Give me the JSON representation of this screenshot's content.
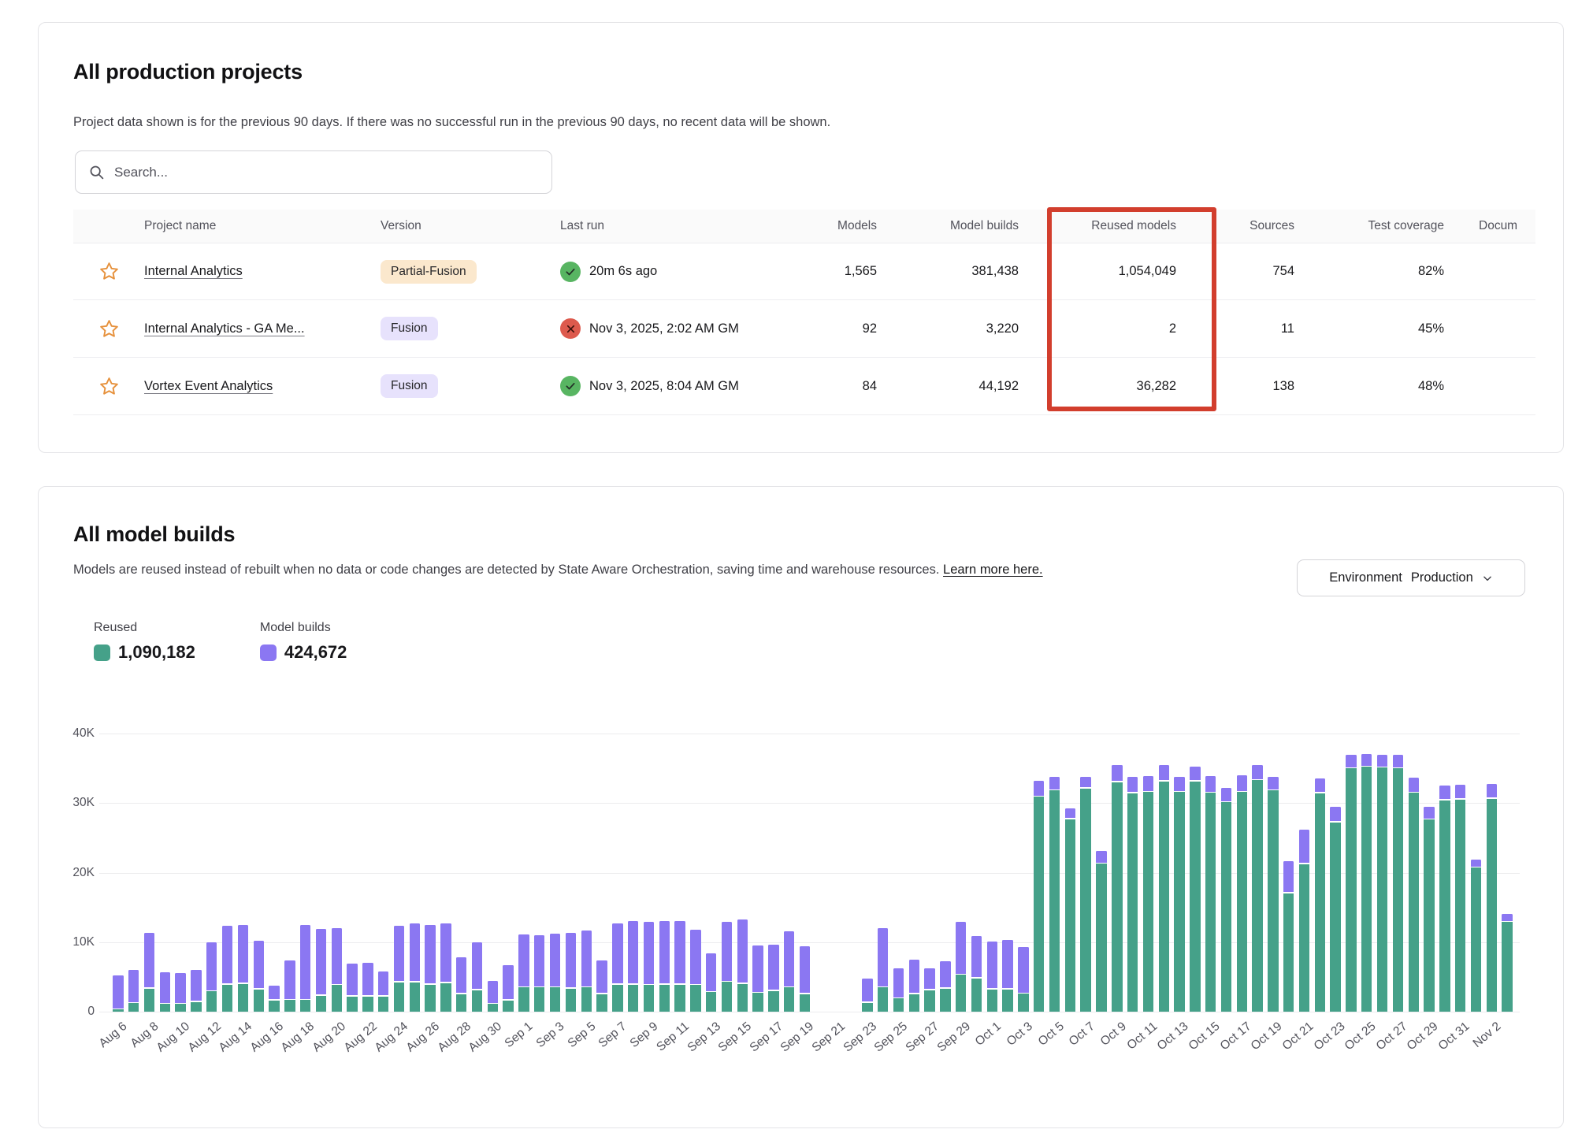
{
  "projects_card": {
    "title": "All production projects",
    "subtitle": "Project data shown is for the previous 90 days. If there was no successful run in the previous 90 days, no recent data will be shown.",
    "search_placeholder": "Search...",
    "table": {
      "columns": [
        "Project name",
        "Version",
        "Last run",
        "Models",
        "Model builds",
        "Reused models",
        "Sources",
        "Test coverage",
        "Docum"
      ],
      "rows": [
        {
          "name": "Internal Analytics",
          "version": "Partial-Fusion",
          "version_style": "partial",
          "status": "success",
          "last_run": "20m 6s ago",
          "models": "1,565",
          "model_builds": "381,438",
          "reused_models": "1,054,049",
          "sources": "754",
          "test_coverage": "82%"
        },
        {
          "name": "Internal Analytics - GA Me...",
          "version": "Fusion",
          "version_style": "fusion",
          "status": "error",
          "last_run": "Nov 3, 2025, 2:02 AM GM",
          "models": "92",
          "model_builds": "3,220",
          "reused_models": "2",
          "sources": "11",
          "test_coverage": "45%"
        },
        {
          "name": "Vortex Event Analytics",
          "version": "Fusion",
          "version_style": "fusion",
          "status": "success",
          "last_run": "Nov 3, 2025, 8:04 AM GM",
          "models": "84",
          "model_builds": "44,192",
          "reused_models": "36,282",
          "sources": "138",
          "test_coverage": "48%"
        }
      ]
    },
    "annotation": {
      "label": "red highlight around Reused models column",
      "color": "#d23e2d"
    }
  },
  "builds_card": {
    "title": "All model builds",
    "subtitle": "Models are reused instead of rebuilt when no data or code changes are detected by State Aware Orchestration, saving time and warehouse resources.",
    "learn_more": "Learn more here.",
    "env_label": "Environment",
    "env_value": "Production",
    "legend": [
      {
        "label": "Reused",
        "value": "1,090,182",
        "color": "#45a189"
      },
      {
        "label": "Model builds",
        "value": "424,672",
        "color": "#8b77f2"
      }
    ]
  },
  "chart_data": {
    "type": "bar",
    "stacked": true,
    "title": "All model builds",
    "xlabel": "",
    "ylabel": "",
    "ylim": [
      0,
      40000
    ],
    "y_ticks": [
      "0",
      "10K",
      "20K",
      "30K",
      "40K"
    ],
    "x_tick_every": 2,
    "grid": true,
    "legend_position": "top-left",
    "categories": [
      "Aug 6",
      "Aug 7",
      "Aug 8",
      "Aug 9",
      "Aug 10",
      "Aug 11",
      "Aug 12",
      "Aug 13",
      "Aug 14",
      "Aug 15",
      "Aug 16",
      "Aug 17",
      "Aug 18",
      "Aug 19",
      "Aug 20",
      "Aug 21",
      "Aug 22",
      "Aug 23",
      "Aug 24",
      "Aug 25",
      "Aug 26",
      "Aug 27",
      "Aug 28",
      "Aug 29",
      "Aug 30",
      "Aug 31",
      "Sep 1",
      "Sep 2",
      "Sep 3",
      "Sep 4",
      "Sep 5",
      "Sep 6",
      "Sep 7",
      "Sep 8",
      "Sep 9",
      "Sep 10",
      "Sep 11",
      "Sep 12",
      "Sep 13",
      "Sep 14",
      "Sep 15",
      "Sep 16",
      "Sep 17",
      "Sep 18",
      "Sep 19",
      "Sep 20",
      "Sep 21",
      "Sep 22",
      "Sep 23",
      "Sep 24",
      "Sep 25",
      "Sep 26",
      "Sep 27",
      "Sep 28",
      "Sep 29",
      "Sep 30",
      "Oct 1",
      "Oct 2",
      "Oct 3",
      "Oct 4",
      "Oct 5",
      "Oct 6",
      "Oct 7",
      "Oct 8",
      "Oct 9",
      "Oct 10",
      "Oct 11",
      "Oct 12",
      "Oct 13",
      "Oct 14",
      "Oct 15",
      "Oct 16",
      "Oct 17",
      "Oct 18",
      "Oct 19",
      "Oct 20",
      "Oct 21",
      "Oct 22",
      "Oct 23",
      "Oct 24",
      "Oct 25",
      "Oct 26",
      "Oct 27",
      "Oct 28",
      "Oct 29",
      "Oct 30",
      "Oct 31",
      "Nov 1",
      "Nov 2",
      "Nov 3"
    ],
    "series": [
      {
        "name": "Reused",
        "color": "#45a189",
        "values": [
          300,
          1200,
          3300,
          1100,
          1100,
          1400,
          2900,
          3900,
          4000,
          3200,
          1600,
          1700,
          1700,
          2300,
          3800,
          2200,
          2200,
          2200,
          4200,
          4200,
          3900,
          4100,
          2500,
          3100,
          1100,
          1600,
          3500,
          3500,
          3500,
          3300,
          3500,
          2500,
          3900,
          3900,
          3800,
          3900,
          3900,
          3800,
          2800,
          4300,
          4000,
          2700,
          3000,
          3500,
          2500,
          0,
          0,
          0,
          1300,
          3500,
          1900,
          2500,
          3100,
          3300,
          5300,
          4800,
          3200,
          3200,
          2600,
          30900,
          31800,
          27700,
          32100,
          21300,
          33000,
          31400,
          31600,
          33100,
          31600,
          33100,
          31500,
          30100,
          31600,
          33300,
          31800,
          17000,
          21200,
          31400,
          27200,
          35000,
          35200,
          35100,
          35000,
          31500,
          27600,
          30400,
          30500,
          20700,
          30600,
          12900
        ]
      },
      {
        "name": "Model builds",
        "color": "#8b77f2",
        "values": [
          4700,
          4600,
          7900,
          4400,
          4300,
          4400,
          6900,
          8300,
          8300,
          6800,
          2000,
          5500,
          10600,
          9400,
          8100,
          4600,
          4700,
          3400,
          8000,
          8300,
          8400,
          8400,
          5200,
          6700,
          3100,
          4900,
          7400,
          7300,
          7500,
          7900,
          8000,
          4700,
          8600,
          9000,
          9000,
          9000,
          9000,
          7800,
          5400,
          8500,
          9100,
          6600,
          6500,
          7900,
          6700,
          0,
          0,
          0,
          3300,
          8300,
          4200,
          4800,
          3000,
          3800,
          7500,
          5900,
          6700,
          7000,
          6500,
          2100,
          1800,
          1400,
          1500,
          1700,
          2300,
          2200,
          2100,
          2200,
          2000,
          2000,
          2200,
          1900,
          2200,
          2000,
          1800,
          4500,
          4800,
          2000,
          2100,
          1800,
          1700,
          1700,
          1800,
          2000,
          1700,
          1900,
          2000,
          1000,
          2000,
          1000
        ]
      }
    ]
  },
  "colors": {
    "reused_green": "#45a189",
    "builds_purple": "#8b77f2",
    "annotation_red": "#d23e2d",
    "badge_partial_bg": "#fbe8cd",
    "badge_fusion_bg": "#e7e2fc",
    "status_ok": "#58b562",
    "status_err": "#dd5a4d",
    "star_orange": "#e6913c"
  }
}
